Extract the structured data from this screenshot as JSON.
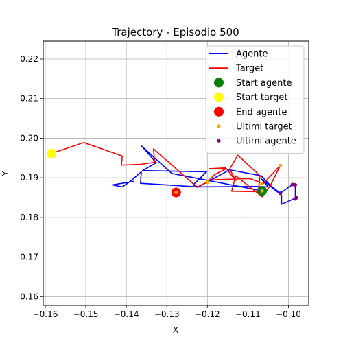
{
  "chart_data": {
    "type": "line",
    "title": "Trajectory - Episodio 500",
    "xlabel": "X",
    "ylabel": "Y",
    "xlim": [
      -0.1605,
      -0.095
    ],
    "ylim": [
      0.1578,
      0.2245
    ],
    "grid": true,
    "x_ticks": [
      -0.16,
      -0.15,
      -0.14,
      -0.13,
      -0.12,
      -0.11,
      -0.1
    ],
    "x_tick_labels": [
      "−0.16",
      "−0.15",
      "−0.14",
      "−0.13",
      "−0.12",
      "−0.11",
      "−0.10"
    ],
    "y_ticks": [
      0.16,
      0.17,
      0.18,
      0.19,
      0.2,
      0.21,
      0.22
    ],
    "y_tick_labels": [
      "0.16",
      "0.17",
      "0.18",
      "0.19",
      "0.20",
      "0.21",
      "0.22"
    ],
    "legend_position": "upper-right",
    "legend": [
      {
        "label": "Agente",
        "kind": "line",
        "color": "#0000ff"
      },
      {
        "label": "Target",
        "kind": "line",
        "color": "#ff0000"
      },
      {
        "label": "Start agente",
        "kind": "dot",
        "color": "#008000"
      },
      {
        "label": "Start target",
        "kind": "dot",
        "color": "#ffff00"
      },
      {
        "label": "End agente",
        "kind": "dot",
        "color": "#ff0000"
      },
      {
        "label": "Ultimi target",
        "kind": "smalldot",
        "color": "#ffa500"
      },
      {
        "label": "Ultimi agente",
        "kind": "smalldot",
        "color": "#800080"
      }
    ],
    "series": [
      {
        "name": "Agente",
        "color": "#0000ff",
        "points": [
          [
            -0.1065,
            0.1867
          ],
          [
            -0.1288,
            0.1911
          ],
          [
            -0.1362,
            0.198
          ],
          [
            -0.1326,
            0.1938
          ],
          [
            -0.136,
            0.1918
          ],
          [
            -0.1202,
            0.1915
          ],
          [
            -0.1235,
            0.1882
          ],
          [
            -0.1223,
            0.1877
          ],
          [
            -0.1145,
            0.192
          ],
          [
            -0.1067,
            0.1905
          ],
          [
            -0.1045,
            0.1881
          ],
          [
            -0.102,
            0.1861
          ],
          [
            -0.099,
            0.1883
          ],
          [
            -0.0983,
            0.1882
          ],
          [
            -0.0983,
            0.1847
          ],
          [
            -0.098,
            0.185
          ],
          [
            -0.1017,
            0.1833
          ],
          [
            -0.1017,
            0.1856
          ],
          [
            -0.1067,
            0.1897
          ],
          [
            -0.105,
            0.1877
          ],
          [
            -0.1082,
            0.1878
          ],
          [
            -0.1223,
            0.1877
          ],
          [
            -0.1365,
            0.1886
          ],
          [
            -0.1363,
            0.1915
          ],
          [
            -0.139,
            0.1891
          ],
          [
            -0.141,
            0.1877
          ],
          [
            -0.1435,
            0.1882
          ],
          [
            -0.138,
            0.1891
          ]
        ]
      },
      {
        "name": "Target",
        "color": "#ff0000",
        "points": [
          [
            -0.1585,
            0.1961
          ],
          [
            -0.1505,
            0.1989
          ],
          [
            -0.141,
            0.1955
          ],
          [
            -0.1412,
            0.1932
          ],
          [
            -0.1365,
            0.1934
          ],
          [
            -0.133,
            0.1939
          ],
          [
            -0.1333,
            0.1973
          ],
          [
            -0.1225,
            0.1876
          ],
          [
            -0.1215,
            0.1882
          ],
          [
            -0.12,
            0.1889
          ],
          [
            -0.1182,
            0.1908
          ],
          [
            -0.1155,
            0.1922
          ],
          [
            -0.1195,
            0.1923
          ],
          [
            -0.1155,
            0.1925
          ],
          [
            -0.113,
            0.1893
          ],
          [
            -0.1145,
            0.1922
          ],
          [
            -0.1125,
            0.1957
          ],
          [
            -0.107,
            0.1905
          ],
          [
            -0.1075,
            0.1863
          ],
          [
            -0.108,
            0.1865
          ],
          [
            -0.114,
            0.1866
          ],
          [
            -0.113,
            0.1905
          ],
          [
            -0.1065,
            0.1852
          ],
          [
            -0.1045,
            0.188
          ],
          [
            -0.102,
            0.1931
          ],
          [
            -0.1062,
            0.1885
          ],
          [
            -0.1095,
            0.1898
          ],
          [
            -0.1185,
            0.1895
          ]
        ]
      }
    ],
    "markers": [
      {
        "label": "Start agente",
        "x": -0.1065,
        "y": 0.1867,
        "color": "#008000"
      },
      {
        "label": "Start target",
        "x": -0.1585,
        "y": 0.1961,
        "color": "#ffff00"
      },
      {
        "label": "End agente",
        "x": -0.1277,
        "y": 0.1863,
        "color": "#ff0000"
      }
    ],
    "ultimi_target": [
      [
        -0.1065,
        0.1867
      ],
      [
        -0.1067,
        0.1885
      ],
      [
        -0.102,
        0.1931
      ],
      [
        -0.12,
        0.1889
      ],
      [
        -0.1277,
        0.1863
      ]
    ],
    "ultimi_agente": [
      [
        -0.102,
        0.1861
      ],
      [
        -0.099,
        0.1883
      ],
      [
        -0.0983,
        0.1882
      ],
      [
        -0.098,
        0.185
      ],
      [
        -0.0983,
        0.1847
      ]
    ]
  }
}
